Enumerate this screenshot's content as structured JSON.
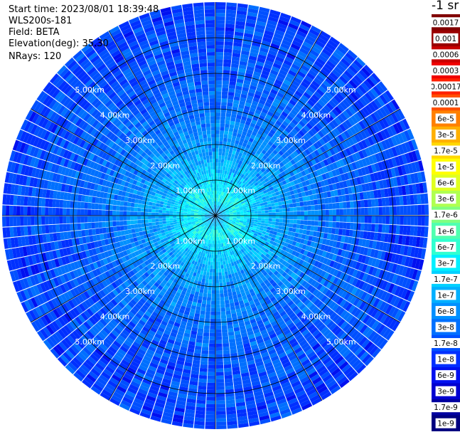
{
  "header": {
    "start_time": "Start time: 2023/08/01 18:39:48",
    "device": "WLS200s-181",
    "field": "Field: BETA",
    "elevation": "Elevation(deg): 35.30",
    "nrays": "NRays: 120"
  },
  "chart_data": {
    "type": "heatmap",
    "projection": "polar-ppi",
    "rays": 120,
    "max_range_km": 6.0,
    "range_rings_km": [
      1.0,
      2.0,
      3.0,
      4.0,
      5.0
    ],
    "ring_labels": [
      "1.00km",
      "2.00km",
      "3.00km",
      "4.00km",
      "5.00km"
    ],
    "spokes_deg": [
      0,
      30,
      60,
      90,
      120,
      150,
      180,
      210,
      240,
      270,
      300,
      330
    ],
    "colorbar": {
      "title": "-1 sr",
      "tick_labels": [
        "0.0017",
        "0.001",
        "0.0006",
        "0.0003",
        "0.00017",
        "0.0001",
        "6e-5",
        "3e-5",
        "1.7e-5",
        "1e-5",
        "6e-6",
        "3e-6",
        "1.7e-6",
        "1e-6",
        "6e-7",
        "3e-7",
        "1.7e-7",
        "1e-7",
        "6e-8",
        "3e-8",
        "1.7e-8",
        "1e-8",
        "6e-9",
        "3e-9",
        "1.7e-9",
        "1e-9"
      ],
      "colors": [
        "#800000",
        "#9a0000",
        "#c80000",
        "#f00000",
        "#ff2000",
        "#ff5000",
        "#ff8000",
        "#ffb000",
        "#ffd800",
        "#ffff00",
        "#e0ff20",
        "#b0ff50",
        "#80ff80",
        "#50ffb0",
        "#30ffd0",
        "#00f0ff",
        "#00d0ff",
        "#00b0ff",
        "#0090ff",
        "#0070ff",
        "#0050ff",
        "#0030ff",
        "#0010f0",
        "#0000d0",
        "#0000a0",
        "#000080"
      ]
    },
    "beta_profile_log10": {
      "range_km": [
        0.0,
        0.5,
        1.0,
        1.5,
        2.0,
        3.0,
        4.0,
        5.0,
        6.0
      ],
      "log10_beta": [
        -7.3,
        -6.4,
        -6.7,
        -7.0,
        -7.2,
        -7.5,
        -7.7,
        -7.8,
        -7.9
      ]
    },
    "colors": {
      "grid": "#000000",
      "ring_label": "#ffffff",
      "ray_gap": "#ffffff"
    }
  }
}
